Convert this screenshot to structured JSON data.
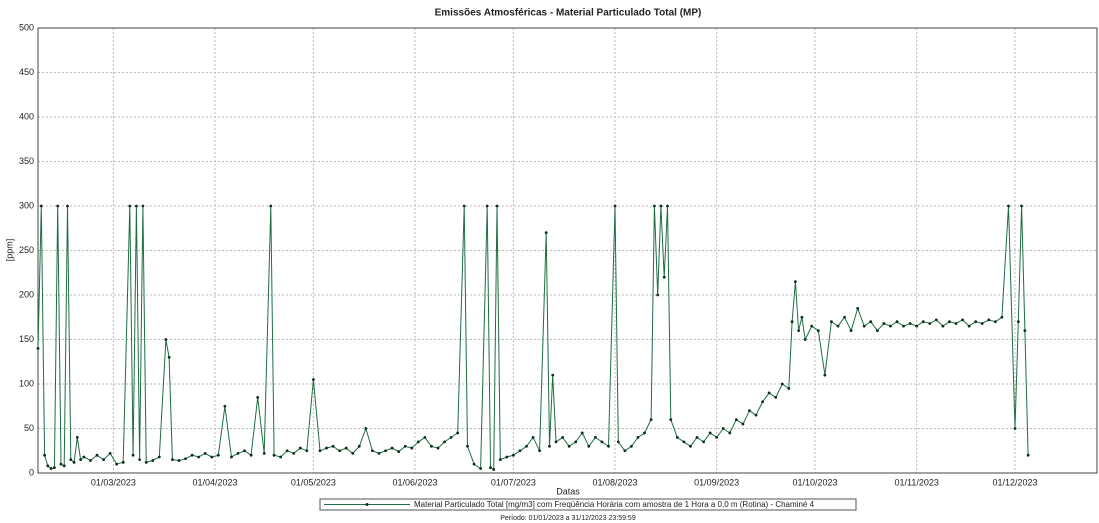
{
  "chart_data": {
    "type": "line",
    "title": "Emissões Atmosféricas - Material Particulado Total (MP)",
    "y_label": "[ppm]",
    "x_label": "Datas",
    "footnote": "Período: 01/01/2023 a 31/12/2023 23:59:59",
    "xlim": [
      "06/02/2023",
      "26/12/2023"
    ],
    "xticks": [
      "01/03/2023",
      "01/04/2023",
      "01/05/2023",
      "01/06/2023",
      "01/07/2023",
      "01/08/2023",
      "01/09/2023",
      "01/10/2023",
      "01/11/2023",
      "01/12/2023"
    ],
    "ylim": [
      0,
      500
    ],
    "yticks": [
      0,
      50,
      100,
      150,
      200,
      250,
      300,
      350,
      400,
      450,
      500
    ],
    "grid": true,
    "x": [
      "06/02/2023",
      "07/02/2023",
      "08/02/2023",
      "09/02/2023",
      "10/02/2023",
      "11/02/2023",
      "12/02/2023",
      "13/02/2023",
      "14/02/2023",
      "15/02/2023",
      "16/02/2023",
      "17/02/2023",
      "18/02/2023",
      "19/02/2023",
      "20/02/2023",
      "22/02/2023",
      "24/02/2023",
      "26/02/2023",
      "28/02/2023",
      "02/03/2023",
      "04/03/2023",
      "06/03/2023",
      "07/03/2023",
      "08/03/2023",
      "09/03/2023",
      "10/03/2023",
      "11/03/2023",
      "13/03/2023",
      "15/03/2023",
      "17/03/2023",
      "18/03/2023",
      "19/03/2023",
      "21/03/2023",
      "23/03/2023",
      "25/03/2023",
      "27/03/2023",
      "29/03/2023",
      "31/03/2023",
      "02/04/2023",
      "04/04/2023",
      "06/04/2023",
      "08/04/2023",
      "10/04/2023",
      "12/04/2023",
      "14/04/2023",
      "16/04/2023",
      "18/04/2023",
      "19/04/2023",
      "21/04/2023",
      "23/04/2023",
      "25/04/2023",
      "27/04/2023",
      "29/04/2023",
      "01/05/2023",
      "03/05/2023",
      "05/05/2023",
      "07/05/2023",
      "09/05/2023",
      "11/05/2023",
      "13/05/2023",
      "15/05/2023",
      "17/05/2023",
      "19/05/2023",
      "21/05/2023",
      "23/05/2023",
      "25/05/2023",
      "27/05/2023",
      "29/05/2023",
      "31/05/2023",
      "02/06/2023",
      "04/06/2023",
      "06/06/2023",
      "08/06/2023",
      "10/06/2023",
      "12/06/2023",
      "14/06/2023",
      "16/06/2023",
      "17/06/2023",
      "19/06/2023",
      "21/06/2023",
      "23/06/2023",
      "24/06/2023",
      "25/06/2023",
      "26/06/2023",
      "27/06/2023",
      "29/06/2023",
      "01/07/2023",
      "03/07/2023",
      "05/07/2023",
      "07/07/2023",
      "09/07/2023",
      "11/07/2023",
      "12/07/2023",
      "13/07/2023",
      "14/07/2023",
      "16/07/2023",
      "18/07/2023",
      "20/07/2023",
      "22/07/2023",
      "24/07/2023",
      "26/07/2023",
      "28/07/2023",
      "30/07/2023",
      "01/08/2023",
      "02/08/2023",
      "04/08/2023",
      "06/08/2023",
      "08/08/2023",
      "10/08/2023",
      "12/08/2023",
      "13/08/2023",
      "14/08/2023",
      "15/08/2023",
      "16/08/2023",
      "17/08/2023",
      "18/08/2023",
      "20/08/2023",
      "22/08/2023",
      "24/08/2023",
      "26/08/2023",
      "28/08/2023",
      "30/08/2023",
      "01/09/2023",
      "03/09/2023",
      "05/09/2023",
      "07/09/2023",
      "09/09/2023",
      "11/09/2023",
      "13/09/2023",
      "15/09/2023",
      "17/09/2023",
      "19/09/2023",
      "21/09/2023",
      "23/09/2023",
      "24/09/2023",
      "25/09/2023",
      "26/09/2023",
      "27/09/2023",
      "28/09/2023",
      "30/09/2023",
      "02/10/2023",
      "04/10/2023",
      "06/10/2023",
      "08/10/2023",
      "10/10/2023",
      "12/10/2023",
      "14/10/2023",
      "16/10/2023",
      "18/10/2023",
      "20/10/2023",
      "22/10/2023",
      "24/10/2023",
      "26/10/2023",
      "28/10/2023",
      "30/10/2023",
      "01/11/2023",
      "03/11/2023",
      "05/11/2023",
      "07/11/2023",
      "09/11/2023",
      "11/11/2023",
      "13/11/2023",
      "15/11/2023",
      "17/11/2023",
      "19/11/2023",
      "21/11/2023",
      "23/11/2023",
      "25/11/2023",
      "27/11/2023",
      "29/11/2023",
      "01/12/2023",
      "02/12/2023",
      "03/12/2023",
      "04/12/2023",
      "05/12/2023"
    ],
    "series": [
      {
        "name": "Material Particulado Total [mg/m3] com Freqüência Horária com amostra de 1 Hora a 0,0 m (Rotina) - Chaminé 4",
        "color": "#1f6e43",
        "values": [
          140,
          300,
          20,
          8,
          5,
          6,
          300,
          10,
          8,
          300,
          15,
          12,
          40,
          15,
          18,
          14,
          20,
          15,
          22,
          10,
          12,
          300,
          20,
          300,
          15,
          300,
          12,
          14,
          18,
          150,
          130,
          15,
          14,
          16,
          20,
          18,
          22,
          18,
          20,
          75,
          18,
          22,
          25,
          20,
          85,
          22,
          300,
          20,
          18,
          25,
          22,
          28,
          25,
          105,
          25,
          28,
          30,
          25,
          28,
          22,
          30,
          50,
          25,
          22,
          25,
          28,
          24,
          30,
          28,
          35,
          40,
          30,
          28,
          35,
          40,
          45,
          300,
          30,
          10,
          5,
          300,
          6,
          4,
          300,
          15,
          18,
          20,
          25,
          30,
          40,
          25,
          270,
          30,
          110,
          35,
          40,
          30,
          35,
          45,
          30,
          40,
          35,
          30,
          300,
          35,
          25,
          30,
          40,
          45,
          60,
          300,
          200,
          300,
          220,
          300,
          60,
          40,
          35,
          30,
          40,
          35,
          45,
          40,
          50,
          45,
          60,
          55,
          70,
          65,
          80,
          90,
          85,
          100,
          95,
          170,
          215,
          160,
          175,
          150,
          165,
          160,
          110,
          170,
          165,
          175,
          160,
          185,
          165,
          170,
          160,
          168,
          165,
          170,
          165,
          168,
          165,
          170,
          168,
          172,
          165,
          170,
          168,
          172,
          165,
          170,
          168,
          172,
          170,
          175,
          300,
          50,
          170,
          300,
          160,
          20
        ]
      }
    ]
  }
}
